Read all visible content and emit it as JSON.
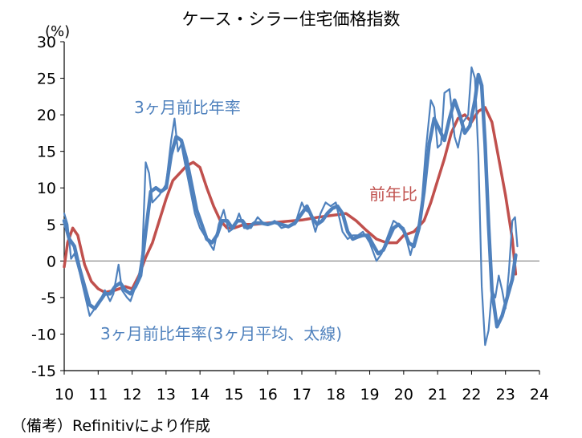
{
  "colors": {
    "yoy": "#C0504D",
    "mom3": "#4F81BD",
    "axis": "#000000",
    "zero": "#808080"
  },
  "chart_data": {
    "type": "line",
    "title": "ケース・シラー住宅価格指数",
    "unit_label": "(%)",
    "note": "（備考）Refinitivにより作成",
    "xlim": [
      2010,
      2024
    ],
    "ylim": [
      -15,
      30
    ],
    "x_ticks": [
      "10",
      "11",
      "12",
      "13",
      "14",
      "15",
      "16",
      "17",
      "18",
      "19",
      "20",
      "21",
      "22",
      "23",
      "24"
    ],
    "y_ticks": [
      "30",
      "25",
      "20",
      "15",
      "10",
      "5",
      "0",
      "-5",
      "-10",
      "-15"
    ],
    "grid": false,
    "annotations": [
      {
        "text": "3ヶ月前比年率",
        "series": "3ヶ月前比年率"
      },
      {
        "text": "前年比",
        "series": "前年比"
      },
      {
        "text": "3ヶ月前比年率(3ヶ月平均、太線)",
        "series": "3ヶ月前比年率(3ヶ月平均、太線)"
      }
    ],
    "series": [
      {
        "name": "前年比",
        "color": "#C0504D",
        "x": [
          2010.0,
          2010.1,
          2010.25,
          2010.4,
          2010.6,
          2010.8,
          2011.0,
          2011.2,
          2011.5,
          2011.8,
          2012.0,
          2012.2,
          2012.4,
          2012.6,
          2012.8,
          2013.0,
          2013.2,
          2013.4,
          2013.6,
          2013.8,
          2014.0,
          2014.2,
          2014.4,
          2014.6,
          2014.8,
          2015.0,
          2015.3,
          2015.6,
          2016.0,
          2016.5,
          2017.0,
          2017.5,
          2018.0,
          2018.3,
          2018.6,
          2018.9,
          2019.2,
          2019.5,
          2019.8,
          2020.0,
          2020.3,
          2020.6,
          2020.8,
          2021.0,
          2021.2,
          2021.4,
          2021.6,
          2021.8,
          2022.0,
          2022.2,
          2022.4,
          2022.6,
          2022.8,
          2023.0,
          2023.2,
          2023.3
        ],
        "y": [
          -0.8,
          2.5,
          4.5,
          3.5,
          -0.5,
          -2.8,
          -3.8,
          -4.3,
          -4.0,
          -3.5,
          -3.8,
          -2.0,
          0.5,
          2.5,
          5.5,
          8.5,
          11.0,
          12.0,
          13.0,
          13.5,
          12.8,
          10.0,
          7.5,
          5.5,
          4.5,
          4.5,
          5.0,
          5.0,
          5.2,
          5.4,
          5.6,
          6.0,
          6.3,
          6.5,
          5.5,
          4.2,
          3.0,
          2.5,
          2.5,
          3.5,
          4.0,
          5.5,
          8.0,
          11.0,
          14.0,
          17.5,
          19.5,
          20.0,
          19.0,
          20.5,
          21.0,
          19.0,
          14.0,
          9.0,
          3.0,
          -1.8
        ]
      },
      {
        "name": "3ヶ月前比年率",
        "color": "#4F81BD",
        "x": [
          2010.0,
          2010.1,
          2010.2,
          2010.3,
          2010.45,
          2010.6,
          2010.75,
          2010.9,
          2011.1,
          2011.2,
          2011.35,
          2011.45,
          2011.6,
          2011.7,
          2011.85,
          2011.95,
          2012.1,
          2012.2,
          2012.3,
          2012.4,
          2012.5,
          2012.6,
          2012.8,
          2013.0,
          2013.15,
          2013.25,
          2013.35,
          2013.45,
          2013.55,
          2013.7,
          2013.85,
          2014.0,
          2014.2,
          2014.4,
          2014.55,
          2014.7,
          2014.85,
          2015.0,
          2015.15,
          2015.3,
          2015.5,
          2015.7,
          2015.9,
          2016.0,
          2016.2,
          2016.4,
          2016.6,
          2016.8,
          2017.0,
          2017.1,
          2017.25,
          2017.4,
          2017.55,
          2017.7,
          2017.85,
          2018.0,
          2018.2,
          2018.35,
          2018.5,
          2018.65,
          2018.8,
          2019.0,
          2019.2,
          2019.35,
          2019.5,
          2019.7,
          2019.85,
          2020.0,
          2020.2,
          2020.35,
          2020.5,
          2020.65,
          2020.8,
          2020.9,
          2021.0,
          2021.1,
          2021.2,
          2021.35,
          2021.5,
          2021.6,
          2021.75,
          2021.9,
          2022.0,
          2022.1,
          2022.2,
          2022.3,
          2022.4,
          2022.5,
          2022.6,
          2022.7,
          2022.8,
          2022.9,
          2023.0,
          2023.1,
          2023.2,
          2023.28,
          2023.35
        ],
        "y": [
          6.5,
          5.0,
          0.3,
          1.0,
          -1.5,
          -4.5,
          -7.5,
          -6.5,
          -5.0,
          -4.0,
          -5.5,
          -4.5,
          -0.5,
          -4.0,
          -5.0,
          -5.5,
          -3.5,
          -2.0,
          1.0,
          13.5,
          12.0,
          8.0,
          9.0,
          10.5,
          16.5,
          19.5,
          15.0,
          16.0,
          13.5,
          10.0,
          6.5,
          4.5,
          3.0,
          1.5,
          5.0,
          7.0,
          4.0,
          4.5,
          6.5,
          4.5,
          4.5,
          6.0,
          5.0,
          5.0,
          5.5,
          4.5,
          4.8,
          5.0,
          8.0,
          7.0,
          6.5,
          4.0,
          6.5,
          8.0,
          7.5,
          8.0,
          4.0,
          3.0,
          3.5,
          3.5,
          4.0,
          2.5,
          0.0,
          1.0,
          3.0,
          5.5,
          5.0,
          4.5,
          0.8,
          3.5,
          6.0,
          15.0,
          22.0,
          21.0,
          15.5,
          16.0,
          23.0,
          23.5,
          17.0,
          15.5,
          19.0,
          20.0,
          26.5,
          25.0,
          14.5,
          -3.5,
          -11.5,
          -9.5,
          -4.0,
          -5.0,
          -2.0,
          -4.0,
          -6.5,
          -1.5,
          5.5,
          6.0,
          2.0
        ]
      },
      {
        "name": "3ヶ月前比年率(3ヶ月平均、太線)",
        "color": "#4F81BD",
        "x": [
          2010.0,
          2010.15,
          2010.3,
          2010.45,
          2010.6,
          2010.75,
          2010.9,
          2011.05,
          2011.2,
          2011.35,
          2011.5,
          2011.65,
          2011.8,
          2011.95,
          2012.1,
          2012.25,
          2012.4,
          2012.55,
          2012.7,
          2012.85,
          2013.0,
          2013.15,
          2013.3,
          2013.45,
          2013.6,
          2013.75,
          2013.9,
          2014.05,
          2014.2,
          2014.35,
          2014.5,
          2014.65,
          2014.8,
          2014.95,
          2015.1,
          2015.25,
          2015.4,
          2015.6,
          2015.8,
          2016.0,
          2016.2,
          2016.4,
          2016.6,
          2016.8,
          2017.0,
          2017.15,
          2017.3,
          2017.45,
          2017.6,
          2017.75,
          2017.9,
          2018.05,
          2018.2,
          2018.35,
          2018.5,
          2018.65,
          2018.8,
          2018.95,
          2019.1,
          2019.25,
          2019.4,
          2019.55,
          2019.7,
          2019.85,
          2020.0,
          2020.15,
          2020.3,
          2020.45,
          2020.6,
          2020.75,
          2020.9,
          2021.05,
          2021.2,
          2021.35,
          2021.5,
          2021.65,
          2021.8,
          2021.95,
          2022.1,
          2022.2,
          2022.3,
          2022.4,
          2022.5,
          2022.6,
          2022.75,
          2022.9,
          2023.05,
          2023.2,
          2023.3
        ],
        "y": [
          5.5,
          3.0,
          2.0,
          -1.0,
          -3.5,
          -6.0,
          -6.5,
          -5.5,
          -4.5,
          -4.5,
          -3.5,
          -3.0,
          -4.0,
          -4.5,
          -3.5,
          -2.0,
          4.0,
          9.5,
          10.0,
          9.5,
          10.0,
          14.5,
          17.0,
          16.5,
          14.0,
          10.5,
          7.0,
          5.0,
          3.0,
          2.5,
          3.5,
          5.5,
          5.5,
          4.5,
          5.5,
          5.5,
          4.5,
          5.2,
          5.2,
          5.0,
          5.3,
          5.0,
          4.7,
          5.2,
          6.5,
          7.5,
          6.0,
          5.0,
          5.5,
          6.5,
          7.2,
          7.5,
          6.5,
          4.0,
          3.0,
          3.3,
          3.5,
          3.5,
          2.2,
          1.0,
          1.5,
          3.0,
          4.5,
          5.0,
          4.2,
          2.5,
          2.0,
          4.5,
          9.5,
          16.0,
          19.5,
          18.0,
          16.5,
          19.5,
          22.0,
          20.0,
          17.5,
          18.5,
          22.0,
          25.5,
          24.0,
          16.0,
          5.0,
          -4.0,
          -9.0,
          -7.5,
          -5.0,
          -2.5,
          0.8
        ]
      }
    ]
  }
}
